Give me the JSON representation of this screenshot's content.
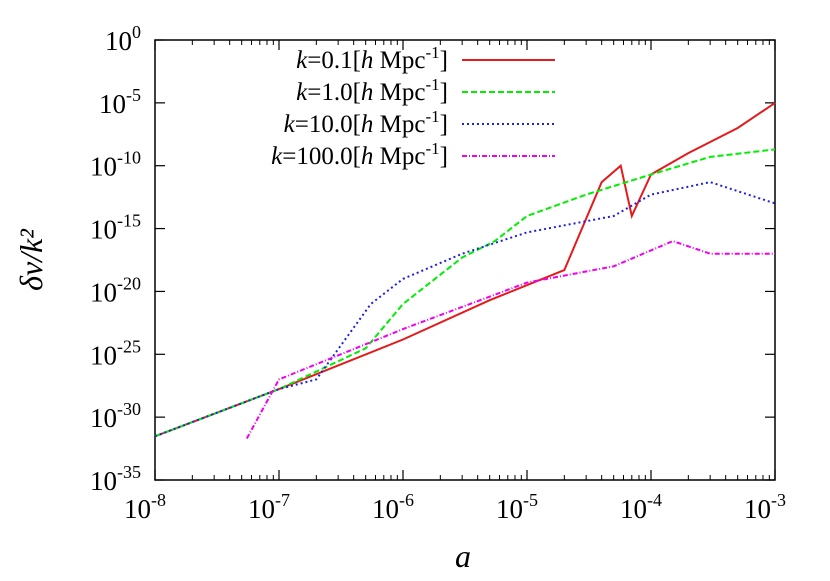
{
  "chart_data": {
    "type": "line",
    "xlabel": "a",
    "ylabel": "δν/k²",
    "xscale": "log",
    "yscale": "log",
    "xlim": [
      1e-08,
      0.001
    ],
    "ylim": [
      1e-35,
      1
    ],
    "xticks": [
      {
        "base": "10",
        "exp": "-8",
        "value": 1e-08
      },
      {
        "base": "10",
        "exp": "-7",
        "value": 1e-07
      },
      {
        "base": "10",
        "exp": "-6",
        "value": 1e-06
      },
      {
        "base": "10",
        "exp": "-5",
        "value": 1e-05
      },
      {
        "base": "10",
        "exp": "-4",
        "value": 0.0001
      },
      {
        "base": "10",
        "exp": "-3",
        "value": 0.001
      }
    ],
    "yticks": [
      {
        "base": "10",
        "exp": "0",
        "value": 1
      },
      {
        "base": "10",
        "exp": "-5",
        "value": 1e-05
      },
      {
        "base": "10",
        "exp": "-10",
        "value": 1e-10
      },
      {
        "base": "10",
        "exp": "-15",
        "value": 1e-15
      },
      {
        "base": "10",
        "exp": "-20",
        "value": 1e-20
      },
      {
        "base": "10",
        "exp": "-25",
        "value": 1e-25
      },
      {
        "base": "10",
        "exp": "-30",
        "value": 1e-30
      },
      {
        "base": "10",
        "exp": "-35",
        "value": 1e-35
      }
    ],
    "legend_position": "top-left",
    "grid": false,
    "series": [
      {
        "name": "k=0.1[h Mpc-1]",
        "label_italic": "k",
        "label_mid": "=0.1[",
        "label_h": "h",
        "label_unit": " Mpc",
        "label_exp": "-1",
        "label_end": "]",
        "color": "#e41a1c",
        "dash": "",
        "x": [
          1e-08,
          1e-07,
          1e-06,
          5e-06,
          2e-05,
          4e-05,
          5.7e-05,
          7e-05,
          0.0001,
          0.0002,
          0.0005,
          0.001
        ],
        "y": [
          3e-32,
          1.7e-28,
          1.5e-24,
          2e-21,
          5e-19,
          5e-12,
          1e-10,
          1e-14,
          2e-11,
          1e-09,
          1e-07,
          1e-05
        ]
      },
      {
        "name": "k=1.0[h Mpc-1]",
        "label_italic": "k",
        "label_mid": "=1.0[",
        "label_h": "h",
        "label_unit": " Mpc",
        "label_exp": "-1",
        "label_end": "]",
        "color": "#00ee00",
        "dash": "6,3",
        "x": [
          1e-08,
          1e-07,
          5e-07,
          1e-06,
          3e-06,
          5.5e-06,
          1e-05,
          3e-05,
          0.0001,
          0.0003,
          0.001
        ],
        "y": [
          3e-32,
          1.7e-28,
          3e-25,
          1e-21,
          5e-18,
          1e-16,
          1e-14,
          5e-13,
          2e-11,
          5e-10,
          2e-09
        ]
      },
      {
        "name": "k=10.0[h Mpc-1]",
        "label_italic": "k",
        "label_mid": "=10.0[",
        "label_h": "h",
        "label_unit": " Mpc",
        "label_exp": "-1",
        "label_end": "]",
        "color": "#1f1fe0",
        "dash": "2,3",
        "x": [
          1e-08,
          1e-07,
          2e-07,
          5.5e-07,
          1e-06,
          3e-06,
          1e-05,
          5e-05,
          0.0001,
          0.0003,
          0.001
        ],
        "y": [
          3e-32,
          1.7e-28,
          1e-27,
          1e-21,
          1e-19,
          1e-17,
          5e-16,
          1e-14,
          5e-13,
          5e-12,
          1e-13
        ]
      },
      {
        "name": "k=100.0[h Mpc-1]",
        "label_italic": "k",
        "label_mid": "=100.0[",
        "label_h": "h",
        "label_unit": " Mpc",
        "label_exp": "-1",
        "label_end": "]",
        "color": "#f000f0",
        "dash": "5,2,1,2",
        "x": [
          5.5e-08,
          1e-07,
          1e-06,
          1e-05,
          5e-05,
          0.00015,
          0.0003,
          0.001
        ],
        "y": [
          2e-32,
          1e-27,
          1e-23,
          5e-20,
          1e-18,
          1e-16,
          1e-17,
          1e-17
        ]
      }
    ]
  }
}
